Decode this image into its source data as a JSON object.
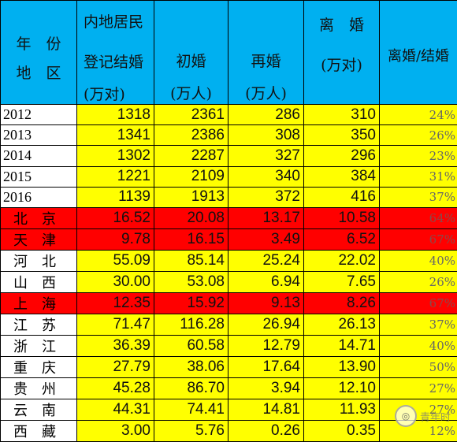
{
  "header": {
    "year_label": "年　份",
    "region_label": "地　区",
    "mainland": "内地居民",
    "reg_marriage": "登记结婚",
    "reg_unit": "(万对)",
    "first": "初婚",
    "first_unit": "(万人)",
    "re": "再婚",
    "re_unit": "(万人)",
    "divorce": "离　婚",
    "divorce_unit": "(万对)",
    "ratio": "离婚/结婚"
  },
  "rows": [
    {
      "label": "2012",
      "marriage": "1318",
      "first": "2361",
      "re": "286",
      "divorce": "310",
      "ratio": "24%"
    },
    {
      "label": "2013",
      "marriage": "1341",
      "first": "2386",
      "re": "308",
      "divorce": "350",
      "ratio": "26%"
    },
    {
      "label": "2014",
      "marriage": "1302",
      "first": "2287",
      "re": "327",
      "divorce": "296",
      "ratio": "23%"
    },
    {
      "label": "2015",
      "marriage": "1221",
      "first": "2109",
      "re": "340",
      "divorce": "384",
      "ratio": "31%"
    },
    {
      "label": "2016",
      "marriage": "1139",
      "first": "1913",
      "re": "372",
      "divorce": "416",
      "ratio": "37%"
    },
    {
      "label": "北　京",
      "marriage": "16.52",
      "first": "20.08",
      "re": "13.17",
      "divorce": "10.58",
      "ratio": "64%"
    },
    {
      "label": "天　津",
      "marriage": "9.78",
      "first": "16.15",
      "re": "3.49",
      "divorce": "6.52",
      "ratio": "67%"
    },
    {
      "label": "河　北",
      "marriage": "55.09",
      "first": "85.14",
      "re": "25.24",
      "divorce": "22.02",
      "ratio": "40%"
    },
    {
      "label": "山　西",
      "marriage": "30.00",
      "first": "53.08",
      "re": "6.94",
      "divorce": "7.65",
      "ratio": "26%"
    },
    {
      "label": "上　海",
      "marriage": "12.35",
      "first": "15.92",
      "re": "9.13",
      "divorce": "8.26",
      "ratio": "67%"
    },
    {
      "label": "江　苏",
      "marriage": "71.47",
      "first": "116.28",
      "re": "26.94",
      "divorce": "26.13",
      "ratio": "37%"
    },
    {
      "label": "浙　江",
      "marriage": "36.39",
      "first": "60.58",
      "re": "12.79",
      "divorce": "14.71",
      "ratio": "40%"
    },
    {
      "label": "重　庆",
      "marriage": "27.79",
      "first": "38.06",
      "re": "17.64",
      "divorce": "13.90",
      "ratio": "50%"
    },
    {
      "label": "贵　州",
      "marriage": "45.28",
      "first": "86.70",
      "re": "3.94",
      "divorce": "12.10",
      "ratio": "27%"
    },
    {
      "label": "云　南",
      "marriage": "44.31",
      "first": "74.41",
      "re": "14.81",
      "divorce": "11.93",
      "ratio": "27%"
    },
    {
      "label": "西　藏",
      "marriage": "3.00",
      "first": "5.76",
      "re": "0.26",
      "divorce": "0.35",
      "ratio": "12%"
    }
  ],
  "colors": {
    "header": "#00b0f0",
    "data": "#ffff00",
    "highlight": "#ff0000"
  },
  "watermark": {
    "text": "青年时",
    "icon": "wechat-badge-icon"
  }
}
